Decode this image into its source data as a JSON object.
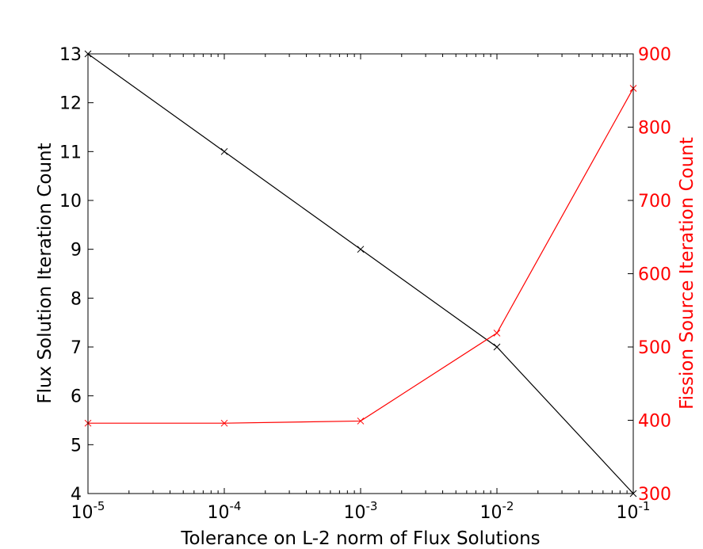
{
  "chart_data": {
    "type": "line",
    "title": "",
    "xlabel": "Tolerance on L-2 norm of Flux Solutions",
    "ylabel_left": "Flux Solution Iteration Count",
    "ylabel_right": "Fission Source Iteration Count",
    "x_scale": "log",
    "x": [
      1e-05,
      0.0001,
      0.001,
      0.01,
      0.1
    ],
    "xlim": [
      1e-05,
      0.1
    ],
    "x_ticks": [
      {
        "base": "10",
        "exp": "-5"
      },
      {
        "base": "10",
        "exp": "-4"
      },
      {
        "base": "10",
        "exp": "-3"
      },
      {
        "base": "10",
        "exp": "-2"
      },
      {
        "base": "10",
        "exp": "-1"
      }
    ],
    "ylim_left": [
      4,
      13
    ],
    "y_ticks_left": [
      "4",
      "5",
      "6",
      "7",
      "8",
      "9",
      "10",
      "11",
      "12",
      "13"
    ],
    "ylim_right": [
      300,
      900
    ],
    "y_ticks_right": [
      "300",
      "400",
      "500",
      "600",
      "700",
      "800",
      "900"
    ],
    "grid": false,
    "series": [
      {
        "axis": "left",
        "color": "#000000",
        "marker": "x",
        "values": [
          13,
          11,
          9,
          7,
          4
        ]
      },
      {
        "axis": "right",
        "color": "#ff0000",
        "marker": "x",
        "values": [
          396,
          396,
          399,
          519,
          853
        ]
      }
    ],
    "colors": {
      "left_axis": "#000000",
      "right_axis": "#ff0000"
    }
  }
}
